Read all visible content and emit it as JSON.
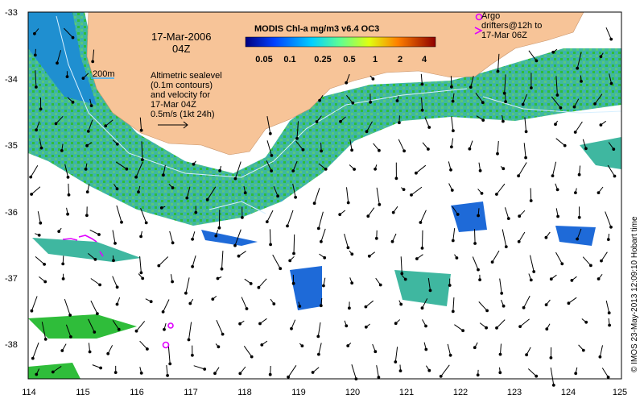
{
  "colors": {
    "land": "#f7c498",
    "ocean": "#ffffff",
    "chl_low": "#1e6ad8",
    "chl_mid": "#3fb7a0",
    "chl_high": "#2fbd3a",
    "argo": "#e000ff",
    "contour": "#d8f0ff"
  },
  "map": {
    "date_line1": "17-Mar-2006",
    "date_line2": "04Z",
    "depth_label": "200m",
    "colorbar_title": "MODIS Chl-a mg/m3 v6.4 OC3",
    "colorbar_ticks": [
      "0.05",
      "0.1",
      "0.25",
      "0.5",
      "1",
      "2",
      "4"
    ],
    "altimetry_note": [
      "Altimetric sealevel",
      "(0.1m contours)",
      "and velocity for",
      "17-Mar 04Z",
      "0.5m/s (1kt 24h)"
    ],
    "argo_note": [
      "Argo",
      "drifters@12h to",
      "17-Mar 06Z"
    ],
    "credit": "© IMOS 23-May-2013 12:09:10 Hobart time",
    "x_ticks": [
      "114",
      "115",
      "116",
      "117",
      "118",
      "119",
      "120",
      "121",
      "122",
      "123",
      "124",
      "125"
    ],
    "y_ticks": [
      "-33",
      "-34",
      "-35",
      "-36",
      "-37",
      "-38"
    ]
  }
}
